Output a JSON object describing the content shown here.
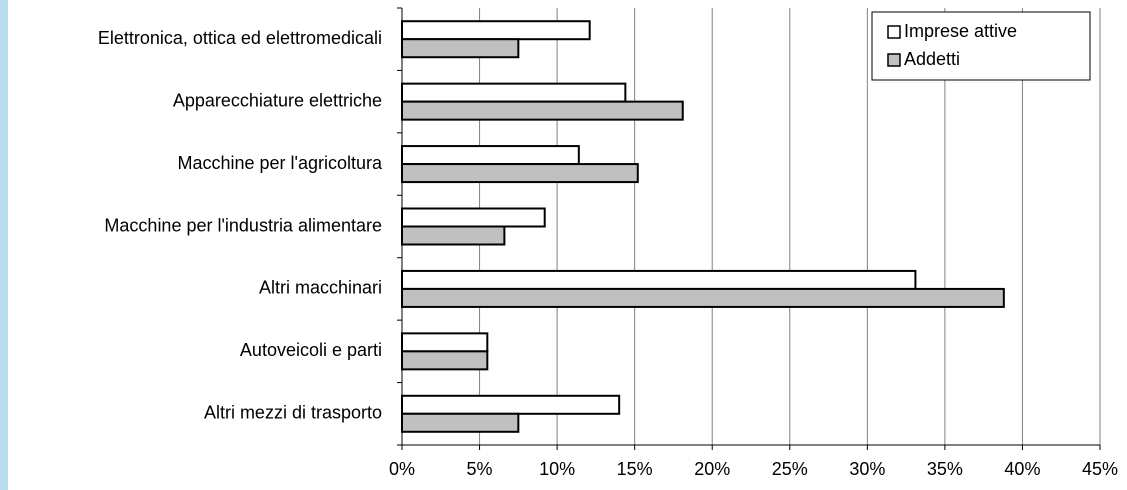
{
  "chart_data": {
    "type": "bar",
    "orientation": "horizontal",
    "categories": [
      "Elettronica, ottica ed elettromedicali",
      "Apparecchiature elettriche",
      "Macchine per l'agricoltura",
      "Macchine per l'industria alimentare",
      "Altri macchinari",
      "Autoveicoli e parti",
      "Altri mezzi di trasporto"
    ],
    "series": [
      {
        "name": "Imprese attive",
        "color": "#ffffff",
        "values": [
          12.1,
          14.4,
          11.4,
          9.2,
          33.1,
          5.5,
          14.0
        ]
      },
      {
        "name": "Addetti",
        "color": "#c0c0c0",
        "values": [
          7.5,
          18.1,
          15.2,
          6.6,
          38.8,
          5.5,
          7.5
        ]
      }
    ],
    "xlim": [
      0,
      45
    ],
    "xticks": [
      {
        "value": 0,
        "label": "0%"
      },
      {
        "value": 5,
        "label": "5%"
      },
      {
        "value": 10,
        "label": "10%"
      },
      {
        "value": 15,
        "label": "15%"
      },
      {
        "value": 20,
        "label": "20%"
      },
      {
        "value": 25,
        "label": "25%"
      },
      {
        "value": 30,
        "label": "30%"
      },
      {
        "value": 35,
        "label": "35%"
      },
      {
        "value": 40,
        "label": "40%"
      },
      {
        "value": 45,
        "label": "45%"
      }
    ],
    "grid": true,
    "legend": "top-right"
  }
}
